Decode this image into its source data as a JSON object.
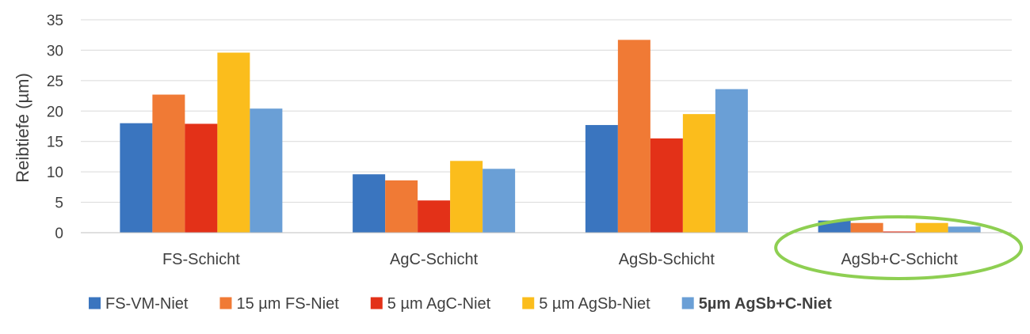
{
  "chart_data": {
    "type": "bar",
    "title": "",
    "xlabel": "",
    "ylabel": "Reibtiefe (µm)",
    "ylim": [
      0,
      35
    ],
    "yticks": [
      0,
      5,
      10,
      15,
      20,
      25,
      30,
      35
    ],
    "grid": true,
    "legend_position": "bottom",
    "categories": [
      "FS-Schicht",
      "AgC-Schicht",
      "AgSb-Schicht",
      "AgSb+C-Schicht"
    ],
    "series": [
      {
        "name": "FS-VM-Niet",
        "color": "#3a75bf",
        "values": [
          18.0,
          9.6,
          17.7,
          2.0
        ]
      },
      {
        "name": "15 µm FS-Niet",
        "color": "#f07a35",
        "values": [
          22.7,
          8.6,
          31.7,
          1.6
        ]
      },
      {
        "name": "5 µm AgC-Niet",
        "color": "#e33118",
        "values": [
          17.9,
          5.3,
          15.5,
          0.2
        ]
      },
      {
        "name": "5 µm AgSb-Niet",
        "color": "#fbbd1c",
        "values": [
          29.6,
          11.8,
          19.5,
          1.6
        ]
      },
      {
        "name": "5µm AgSb+C-Niet",
        "color": "#6a9fd6",
        "values": [
          20.4,
          10.5,
          23.6,
          1.0
        ]
      }
    ],
    "highlight": {
      "category": "AgSb+C-Schicht",
      "shape": "ellipse",
      "color": "#8ecf52"
    },
    "legend_bold_series": "5µm AgSb+C-Niet"
  }
}
